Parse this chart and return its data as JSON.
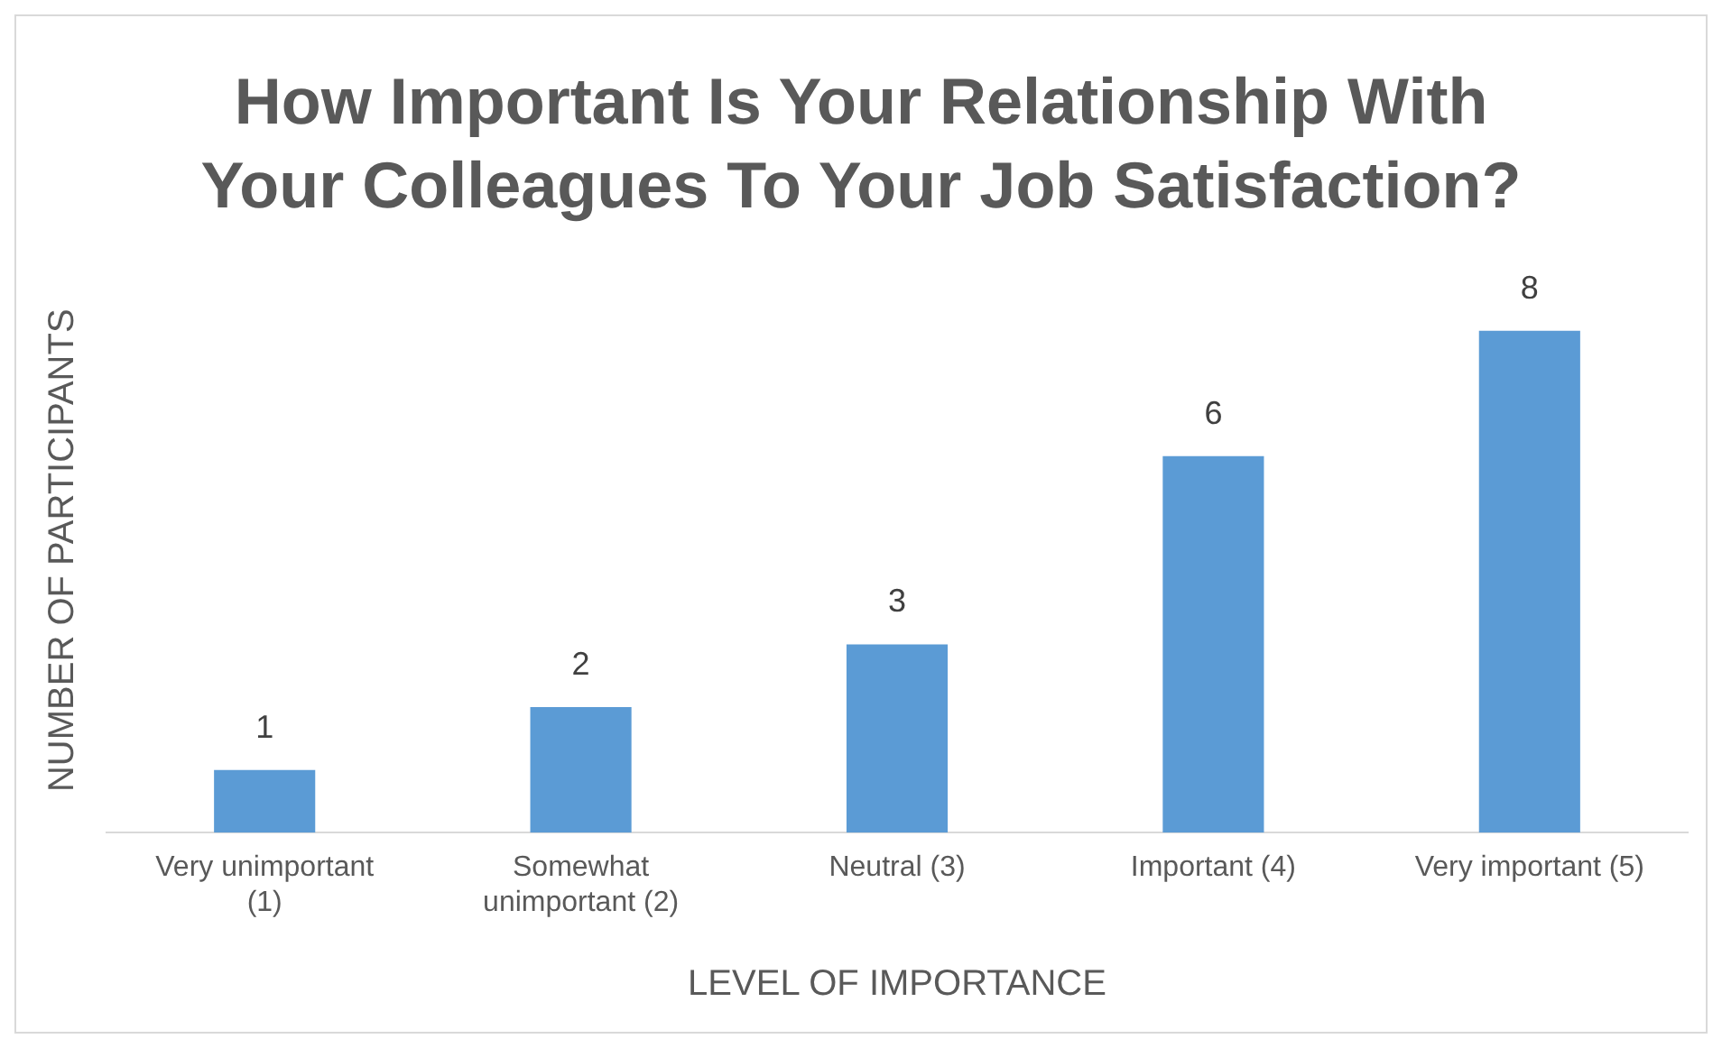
{
  "chart_data": {
    "type": "bar",
    "title": "How Important Is Your Relationship With Your Colleagues To Your Job Satisfaction?",
    "xlabel": "LEVEL OF IMPORTANCE",
    "ylabel": "NUMBER OF PARTICIPANTS",
    "categories": [
      "Very unimportant (1)",
      "Somewhat unimportant (2)",
      "Neutral (3)",
      "Important (4)",
      "Very important (5)"
    ],
    "values": [
      1,
      2,
      3,
      6,
      8
    ],
    "color": "#5b9bd5",
    "data_labels": true,
    "grid": false,
    "legend": false
  }
}
